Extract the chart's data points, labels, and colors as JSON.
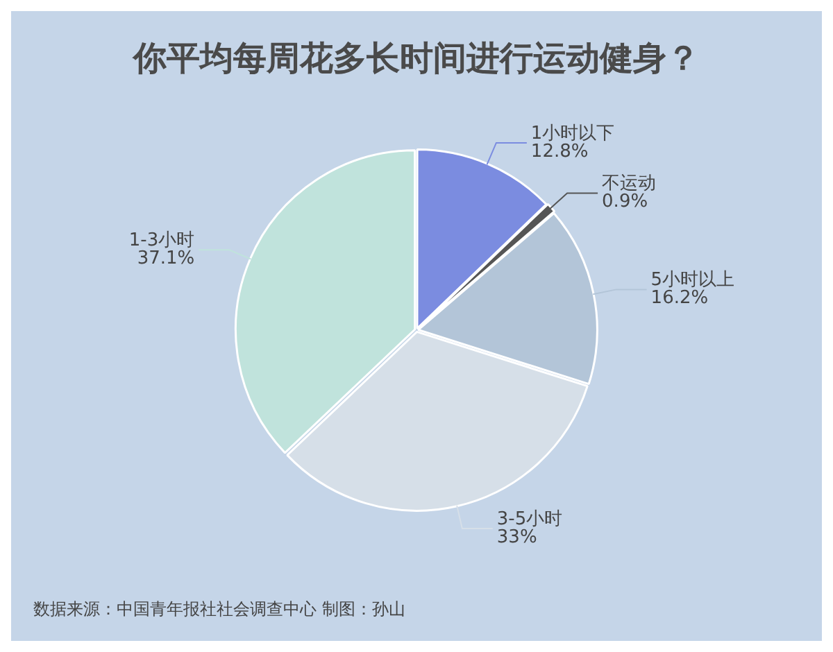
{
  "chart_data": {
    "type": "pie",
    "title": "你平均每周花多长时间进行运动健身？",
    "categories": [
      "1小时以下",
      "不运动",
      "5小时以上",
      "3-5小时",
      "1-3小时"
    ],
    "values": [
      12.8,
      0.9,
      16.2,
      33,
      37.1
    ],
    "value_labels": [
      "12.8%",
      "0.9%",
      "16.2%",
      "33%",
      "37.1%"
    ],
    "colors": [
      "#7b8ce0",
      "#555555",
      "#b3c5d8",
      "#d6dfe8",
      "#c0e3dc"
    ],
    "legend": false,
    "annotations": [
      "数据来源：中国青年报社社会调查中心 制图：孙山"
    ]
  }
}
